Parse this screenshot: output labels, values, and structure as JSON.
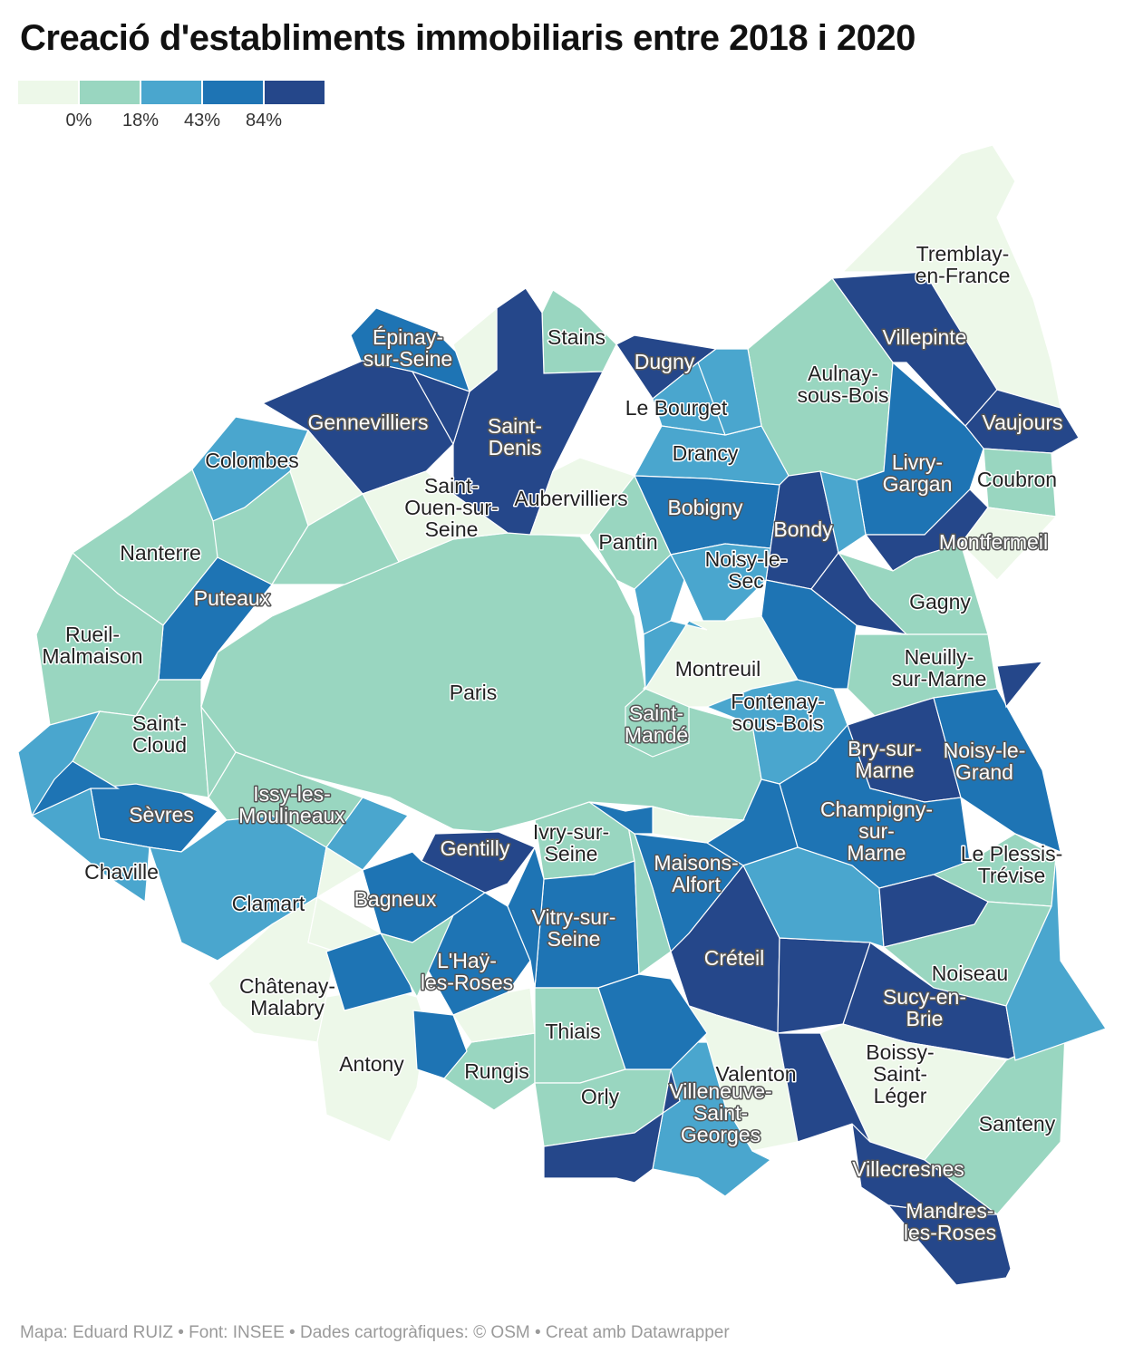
{
  "title": "Creació d'establiments immobiliaris entre 2018 i 2020",
  "legend": {
    "colors": [
      "#edf8e9",
      "#99d6c0",
      "#4aa6ce",
      "#1e74b4",
      "#25478a"
    ],
    "labels": [
      "0%",
      "18%",
      "43%",
      "84%"
    ]
  },
  "footer": "Mapa: Eduard RUIZ • Font: INSEE • Dades cartogràfiques: © OSM • Creat amb Datawrapper",
  "municipalities": [
    {
      "name": "Tremblay-\nen-France",
      "class": 0
    },
    {
      "name": "Villepinte",
      "class": 4
    },
    {
      "name": "Aulnay-\nsous-Bois",
      "class": 1
    },
    {
      "name": "Vaujours",
      "class": 4
    },
    {
      "name": "Coubron",
      "class": 1
    },
    {
      "name": "Livry-\nGargan",
      "class": 3
    },
    {
      "name": "Montfermeil",
      "class": 4
    },
    {
      "name": "Stains",
      "class": 1
    },
    {
      "name": "Épinay-\nsur-Seine",
      "class": 3
    },
    {
      "name": "Dugny",
      "class": 4
    },
    {
      "name": "Le Bourget",
      "class": 2
    },
    {
      "name": "Drancy",
      "class": 2
    },
    {
      "name": "Gennevilliers",
      "class": 4
    },
    {
      "name": "Saint-\nDenis",
      "class": 4
    },
    {
      "name": "Colombes",
      "class": 2
    },
    {
      "name": "Aubervilliers",
      "class": 0
    },
    {
      "name": "Bobigny",
      "class": 3
    },
    {
      "name": "Bondy",
      "class": 4
    },
    {
      "name": "Saint-\nOuen-sur-\nSeine",
      "class": 0
    },
    {
      "name": "Pantin",
      "class": 1
    },
    {
      "name": "Noisy-le-\nSec",
      "class": 2
    },
    {
      "name": "Gagny",
      "class": 1
    },
    {
      "name": "Nanterre",
      "class": 1
    },
    {
      "name": "Puteaux",
      "class": 3
    },
    {
      "name": "Rueil-\nMalmaison",
      "class": 1
    },
    {
      "name": "Paris",
      "class": 1
    },
    {
      "name": "Montreuil",
      "class": 0
    },
    {
      "name": "Neuilly-\nsur-Marne",
      "class": 1
    },
    {
      "name": "Saint-\nMandé",
      "class": 1
    },
    {
      "name": "Fontenay-\nsous-Bois",
      "class": 2
    },
    {
      "name": "Saint-\nCloud",
      "class": 1
    },
    {
      "name": "Bry-sur-\nMarne",
      "class": 4
    },
    {
      "name": "Noisy-le-\nGrand",
      "class": 3
    },
    {
      "name": "Sèvres",
      "class": 3
    },
    {
      "name": "Issy-les-\nMoulineaux",
      "class": 1
    },
    {
      "name": "Champigny-\nsur-\nMarne",
      "class": 3
    },
    {
      "name": "Gentilly",
      "class": 4
    },
    {
      "name": "Ivry-sur-\nSeine",
      "class": 1
    },
    {
      "name": "Chaville",
      "class": 2
    },
    {
      "name": "Le Plessis-\nTrévise",
      "class": 1
    },
    {
      "name": "Maisons-\nAlfort",
      "class": 3
    },
    {
      "name": "Clamart",
      "class": 2
    },
    {
      "name": "Bagneux",
      "class": 3
    },
    {
      "name": "Vitry-sur-\nSeine",
      "class": 3
    },
    {
      "name": "Créteil",
      "class": 4
    },
    {
      "name": "Noiseau",
      "class": 1
    },
    {
      "name": "L'Haÿ-\nles-Roses",
      "class": 3
    },
    {
      "name": "Châtenay-\nMalabry",
      "class": 0
    },
    {
      "name": "Sucy-en-\nBrie",
      "class": 4
    },
    {
      "name": "Thiais",
      "class": 1
    },
    {
      "name": "Antony",
      "class": 0
    },
    {
      "name": "Rungis",
      "class": 1
    },
    {
      "name": "Valenton",
      "class": 0
    },
    {
      "name": "Boissy-\nSaint-\nLéger",
      "class": 0
    },
    {
      "name": "Orly",
      "class": 1
    },
    {
      "name": "Santeny",
      "class": 1
    },
    {
      "name": "Villeneuve-\nSaint-\nGeorges",
      "class": 2
    },
    {
      "name": "Villecresnes",
      "class": 4
    },
    {
      "name": "Mandres-\nles-Roses",
      "class": 4
    }
  ]
}
